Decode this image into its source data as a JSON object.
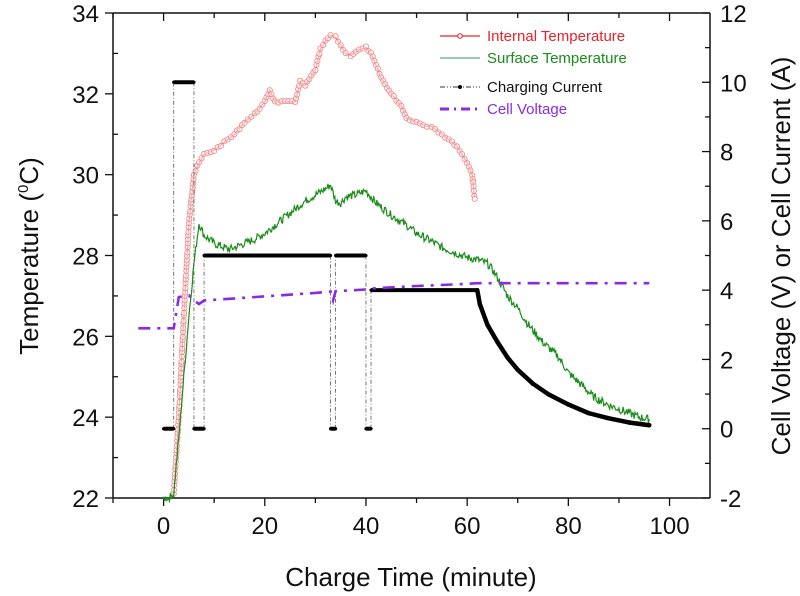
{
  "chart_data": {
    "type": "line",
    "title": "",
    "xlabel": "Charge Time (minute)",
    "ylabel_left": "Temperature (⁰C)",
    "ylabel_left_parts": {
      "pre": "Temperature (",
      "sup": "0",
      "post": "C)"
    },
    "ylabel_right": "Cell Voltage (V) or Cell Current (A)",
    "xlim": [
      -10,
      108
    ],
    "ylim_left": [
      22,
      34
    ],
    "ylim_right": [
      -2,
      12
    ],
    "x_ticks": [
      0,
      20,
      40,
      60,
      80,
      100
    ],
    "x_tick_labels": [
      "0",
      "20",
      "40",
      "60",
      "80",
      "100"
    ],
    "y_left_ticks": [
      22,
      24,
      26,
      28,
      30,
      32,
      34
    ],
    "y_left_tick_labels": [
      "22",
      "24",
      "26",
      "28",
      "30",
      "32",
      "34"
    ],
    "y_right_ticks": [
      -2,
      0,
      2,
      4,
      6,
      8,
      10,
      12
    ],
    "y_right_tick_labels": [
      "-2",
      "0",
      "2",
      "4",
      "6",
      "8",
      "10",
      "12"
    ],
    "grid": false,
    "legend_position": "top-right",
    "series": [
      {
        "name": "Internal Temperature",
        "axis": "left",
        "color": "#e8222a",
        "style": "line-open-circle",
        "x": [
          2,
          3,
          4,
          5,
          6,
          7,
          8,
          10,
          12,
          14,
          16,
          18,
          20,
          21,
          22,
          24,
          26,
          27,
          28,
          30,
          31,
          32,
          33,
          34,
          35,
          36,
          37,
          38,
          40,
          41,
          42,
          43,
          45,
          47,
          48,
          50,
          52,
          53,
          55,
          57,
          58,
          59,
          60,
          61,
          61.5
        ],
        "y": [
          22.1,
          24.0,
          26.5,
          28.8,
          30.0,
          30.3,
          30.5,
          30.6,
          30.8,
          31.0,
          31.3,
          31.5,
          31.8,
          32.1,
          31.8,
          31.8,
          31.8,
          32.3,
          32.2,
          32.6,
          33.1,
          33.3,
          33.45,
          33.4,
          33.2,
          33.0,
          32.95,
          33.05,
          33.15,
          33.0,
          32.7,
          32.4,
          32.0,
          31.7,
          31.4,
          31.3,
          31.2,
          31.2,
          31.0,
          30.8,
          30.7,
          30.5,
          30.3,
          30.0,
          29.4
        ]
      },
      {
        "name": "Surface Temperature",
        "axis": "left",
        "color": "#1a8c1a",
        "style": "line-noisy",
        "x": [
          0,
          1,
          2,
          3,
          4,
          5,
          6,
          7,
          8,
          10,
          12,
          13,
          15,
          18,
          20,
          22,
          25,
          28,
          30,
          32,
          33,
          34,
          35,
          36,
          38,
          40,
          42,
          45,
          48,
          50,
          53,
          55,
          58,
          60,
          62,
          64,
          65,
          66,
          68,
          70,
          72,
          75,
          78,
          80,
          83,
          85,
          88,
          90,
          92,
          94,
          96
        ],
        "y": [
          22.0,
          22.0,
          22.1,
          23.5,
          25.0,
          26.5,
          27.8,
          28.8,
          28.5,
          28.3,
          28.2,
          28.15,
          28.25,
          28.4,
          28.55,
          28.75,
          29.05,
          29.35,
          29.5,
          29.65,
          29.75,
          29.35,
          29.3,
          29.45,
          29.5,
          29.6,
          29.3,
          29.0,
          28.75,
          28.55,
          28.35,
          28.2,
          28.05,
          27.95,
          27.9,
          27.8,
          27.65,
          27.45,
          27.0,
          26.7,
          26.3,
          25.85,
          25.5,
          25.1,
          24.75,
          24.5,
          24.3,
          24.2,
          24.1,
          24.0,
          23.95
        ]
      },
      {
        "name": "Charging Current",
        "axis": "right",
        "color": "#000000",
        "style": "dash-dot-dot-with-dot-markers",
        "x": [
          0,
          2,
          2,
          6,
          6,
          8,
          8,
          33,
          33,
          34,
          34,
          40,
          40,
          41,
          41,
          62,
          62.5,
          64,
          66,
          68,
          70,
          73,
          76,
          80,
          84,
          88,
          92,
          96
        ],
        "y": [
          0,
          0,
          10,
          10,
          0,
          0,
          5,
          5,
          0,
          0,
          5,
          5,
          0,
          0,
          4,
          4,
          3.6,
          3.0,
          2.5,
          2.05,
          1.7,
          1.3,
          1.0,
          0.7,
          0.45,
          0.3,
          0.18,
          0.1
        ]
      },
      {
        "name": "Cell Voltage",
        "axis": "right",
        "color": "#8a2be2",
        "style": "dash-dot",
        "x": [
          -5,
          0,
          2,
          3,
          5,
          6,
          7,
          8,
          10,
          20,
          30,
          33,
          33.5,
          34,
          40,
          41,
          50,
          60,
          62,
          70,
          80,
          90,
          96
        ],
        "y": [
          2.9,
          2.9,
          2.9,
          3.8,
          3.85,
          3.7,
          3.6,
          3.7,
          3.72,
          3.82,
          3.92,
          3.96,
          3.7,
          3.97,
          4.02,
          4.05,
          4.12,
          4.18,
          4.2,
          4.2,
          4.2,
          4.2,
          4.2
        ]
      }
    ]
  }
}
